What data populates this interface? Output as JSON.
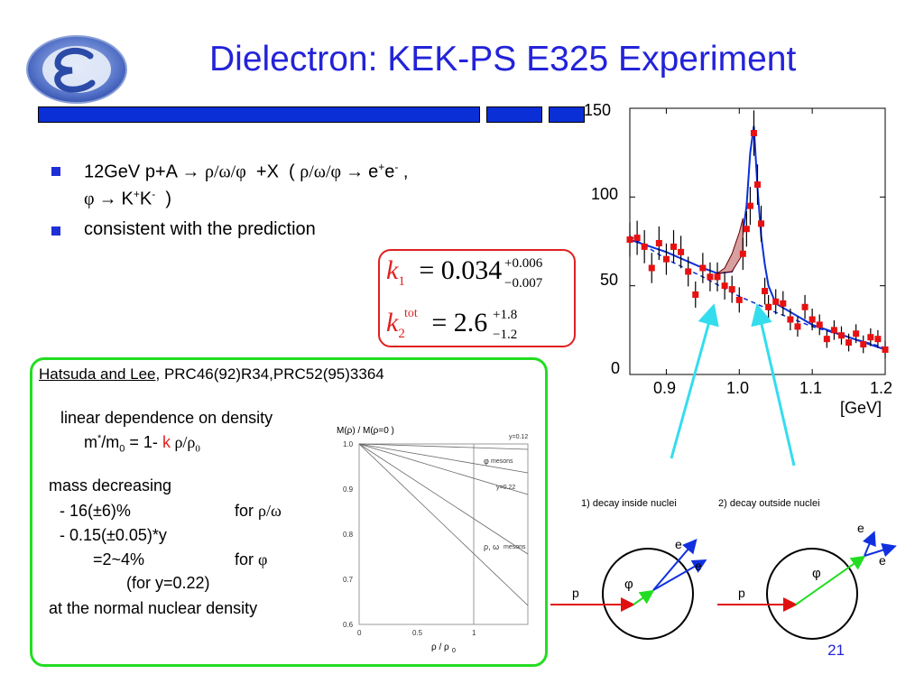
{
  "title": "Dielectron: KEK-PS E325 Experiment",
  "bullets": [
    {
      "pre": "12GeV p+A ",
      "arrow": "→",
      "rwp1": "ρ/ω/φ",
      "mid": "  +X  ( ",
      "rwp2": "ρ/ω/φ",
      "arrow2": " → ",
      "e": "e",
      "plus": "+",
      "e2": "e",
      "minus": "-",
      "tail": " ,"
    },
    {
      "phi": "φ",
      "arrow": " → ",
      "k": "K",
      "plus": "+",
      "k2": "K",
      "minus": "-",
      "tail": "  )"
    },
    {
      "text": "consistent with the prediction"
    }
  ],
  "formula": {
    "k1_label": "k",
    "k1_sub": "1",
    "eq1": "=",
    "k1_value": "0.034",
    "k1_up": "+0.006",
    "k1_down": "−0.007",
    "k2_label": "k",
    "k2_sub": "2",
    "k2_sup": "tot",
    "eq2": "=",
    "k2_value": "2.6",
    "k2_up": "+1.8",
    "k2_down": "−1.2"
  },
  "reference": {
    "link": "Hatsuda and Lee",
    "rest": ", PRC46(92)R34,PRC52(95)3364"
  },
  "green": {
    "line1": "linear dependence on density",
    "line2_a": "m",
    "line2_sup": "*",
    "line2_b": "/m",
    "line2_sub": "0",
    "line2_c": " = 1- ",
    "line2_k": "k",
    "line2_d": " ρ/ρ",
    "line2_sub2": "0",
    "line3": "mass decreasing",
    "line4_a": "- 16(±6)%",
    "line4_b": "for ",
    "line4_c": "ρ/ω",
    "line5": "- 0.15(±0.05)*y",
    "line6_a": "=2~4%",
    "line6_b": "for ",
    "line6_c": "φ",
    "line7": "(for y=0.22)",
    "line8": "at the normal nuclear density"
  },
  "small_chart": {
    "ylabel": "M(ρ) / M(ρ=0 )",
    "xlabel": "ρ / ρ",
    "xlabel_sub": "0",
    "yticks": [
      "1.0",
      "0.9",
      "0.8",
      "0.7",
      "0.6"
    ],
    "xticks": [
      "0",
      "0.5",
      "1"
    ],
    "lab_y012": "y=0.12",
    "lab_phi": "φ",
    "lab_phi_mesons": "mesons",
    "lab_y022": "y=0.22",
    "lab_rho": "ρ, ω",
    "lab_rho_mesons": "mesons"
  },
  "big_chart": {
    "yticks": [
      "150",
      "100",
      "50",
      "0"
    ],
    "xticks": [
      "0.9",
      "1.0",
      "1.1",
      "1.2"
    ],
    "unit": "[GeV]"
  },
  "decay": {
    "label1": "1) decay inside nuclei",
    "label2": "2) decay outside nuclei",
    "p": "p",
    "phi": "φ",
    "e": "e"
  },
  "colors": {
    "title": "#2323d9",
    "bar": "#0a2fd6",
    "formula_border": "#e02020",
    "green_border": "#22dd22",
    "cyan_arrow": "#33ddee",
    "data_point": "#e81010",
    "fit_line": "#0a2fd6"
  },
  "page_number": "21",
  "chart_data": {
    "type": "scatter",
    "xlabel": "[GeV]",
    "xlim": [
      0.85,
      1.2
    ],
    "ylim": [
      0,
      150
    ],
    "x": [
      0.85,
      0.86,
      0.87,
      0.88,
      0.89,
      0.9,
      0.91,
      0.92,
      0.93,
      0.94,
      0.95,
      0.96,
      0.97,
      0.98,
      0.99,
      1.0,
      1.005,
      1.01,
      1.015,
      1.02,
      1.025,
      1.03,
      1.035,
      1.04,
      1.05,
      1.06,
      1.07,
      1.08,
      1.09,
      1.1,
      1.11,
      1.12,
      1.13,
      1.14,
      1.15,
      1.16,
      1.17,
      1.18,
      1.19,
      1.2
    ],
    "y": [
      76,
      77,
      72,
      60,
      74,
      65,
      72,
      69,
      58,
      45,
      60,
      55,
      55,
      50,
      48,
      42,
      68,
      82,
      95,
      136,
      107,
      85,
      47,
      38,
      41,
      40,
      31,
      27,
      38,
      31,
      28,
      20,
      25,
      22,
      18,
      23,
      17,
      21,
      20,
      14
    ]
  }
}
